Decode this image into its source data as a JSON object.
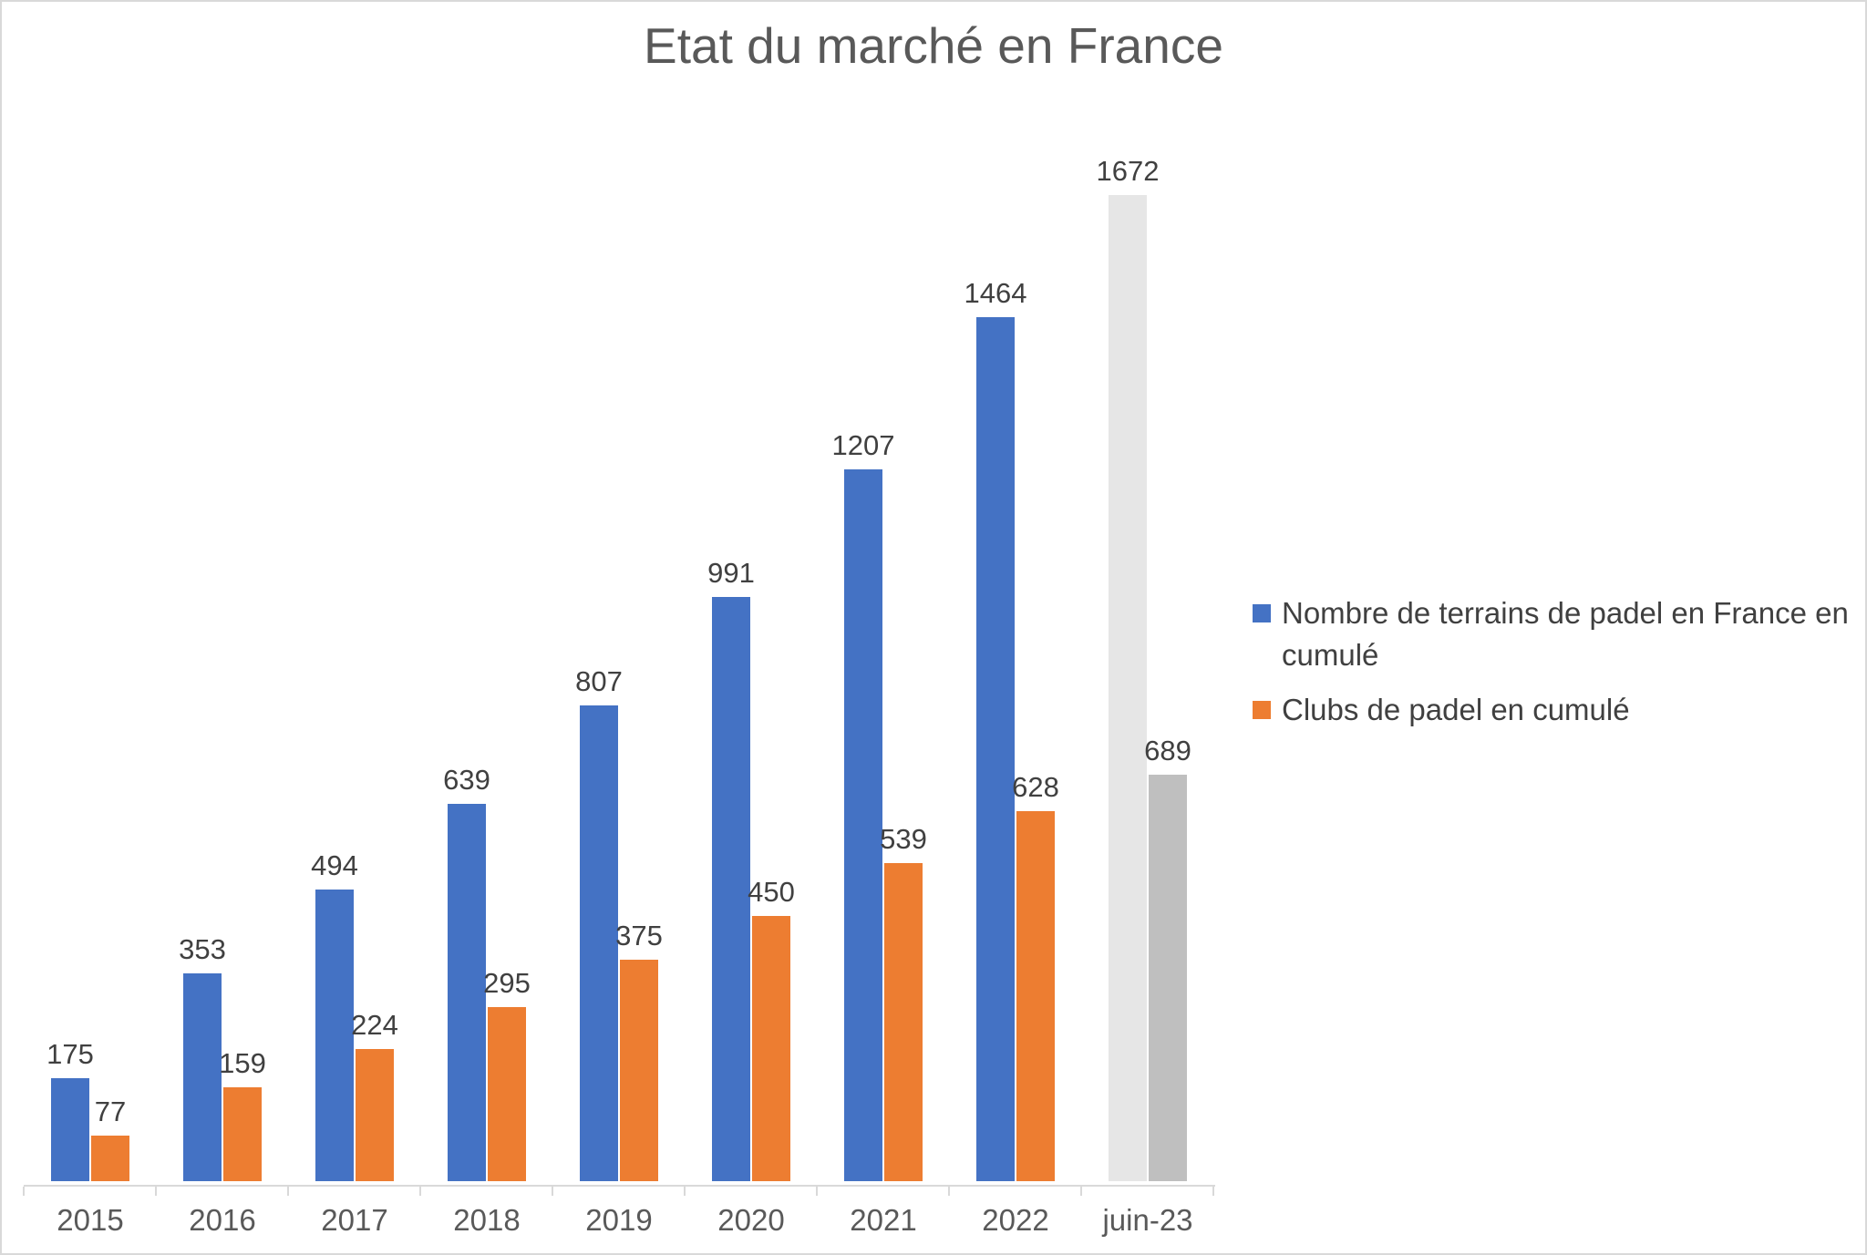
{
  "chart_data": {
    "type": "bar",
    "title": "Etat du marché en France",
    "categories": [
      "2015",
      "2016",
      "2017",
      "2018",
      "2019",
      "2020",
      "2021",
      "2022",
      "juin-23"
    ],
    "series": [
      {
        "name": "Nombre de terrains de padel en France en cumulé",
        "key": "terrains",
        "values": [
          175,
          353,
          494,
          639,
          807,
          991,
          1207,
          1464,
          1672
        ],
        "color": "#4472C4",
        "bar_colors": [
          "#4472C4",
          "#4472C4",
          "#4472C4",
          "#4472C4",
          "#4472C4",
          "#4472C4",
          "#4472C4",
          "#4472C4",
          "#E6E6E6"
        ]
      },
      {
        "name": "Clubs de padel en cumulé",
        "key": "clubs",
        "values": [
          77,
          159,
          224,
          295,
          375,
          450,
          539,
          628,
          689
        ],
        "color": "#ED7D31",
        "bar_colors": [
          "#ED7D31",
          "#ED7D31",
          "#ED7D31",
          "#ED7D31",
          "#ED7D31",
          "#ED7D31",
          "#ED7D31",
          "#ED7D31",
          "#BFBFBF"
        ]
      }
    ],
    "data_labels": true,
    "grid": false,
    "y_axis_visible": false,
    "legend_position": "right",
    "colors": {
      "title_text": "#595959",
      "axis_text": "#595959",
      "data_label_text": "#404040",
      "axis_line": "#D9D9D9"
    }
  }
}
